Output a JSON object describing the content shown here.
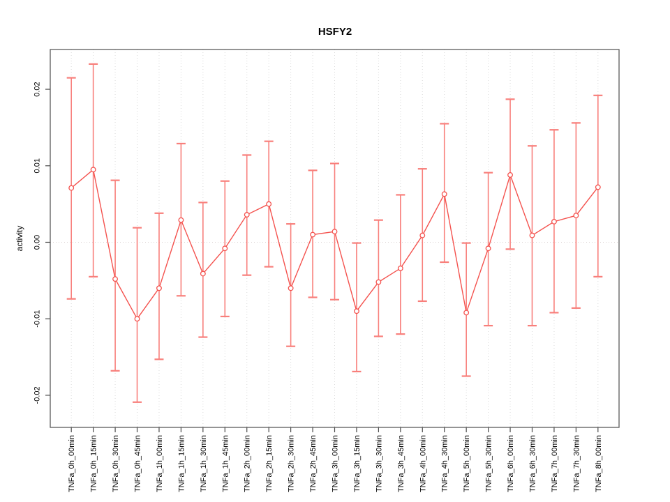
{
  "header": {
    "title": "HSFY2"
  },
  "chart_data": {
    "type": "line",
    "title": "HSFY2",
    "xlabel": "",
    "ylabel": "activity",
    "ylim": [
      -0.0242,
      0.0252
    ],
    "yticks": [
      -0.02,
      -0.01,
      0.0,
      0.01,
      0.02
    ],
    "ytick_labels": [
      "-0.02",
      "-0.01",
      "0.00",
      "0.01",
      "0.02"
    ],
    "grid": {
      "vertical_per_category": true,
      "zero_line": true,
      "style": "dotted"
    },
    "legend": null,
    "categories": [
      "TNFa_0h_00min",
      "TNFa_0h_15min",
      "TNFa_0h_30min",
      "TNFa_0h_45min",
      "TNFa_1h_00min",
      "TNFa_1h_15min",
      "TNFa_1h_30min",
      "TNFa_1h_45min",
      "TNFa_2h_00min",
      "TNFa_2h_15min",
      "TNFa_2h_30min",
      "TNFa_2h_45min",
      "TNFa_3h_00min",
      "TNFa_3h_15min",
      "TNFa_3h_30min",
      "TNFa_3h_45min",
      "TNFa_4h_00min",
      "TNFa_4h_30min",
      "TNFa_5h_00min",
      "TNFa_5h_30min",
      "TNFa_6h_00min",
      "TNFa_6h_30min",
      "TNFa_7h_00min",
      "TNFa_7h_30min",
      "TNFa_8h_00min"
    ],
    "series": [
      {
        "name": "activity",
        "marker": "open-circle",
        "values": [
          0.0071,
          0.0095,
          -0.0048,
          -0.01,
          -0.006,
          0.0029,
          -0.0041,
          -0.0008,
          0.0036,
          0.005,
          -0.006,
          0.001,
          0.0014,
          -0.009,
          -0.0052,
          -0.0034,
          0.0009,
          0.0063,
          -0.0092,
          -0.0008,
          0.0088,
          0.0009,
          0.0027,
          0.0035,
          0.0072
        ],
        "err_high": [
          0.0215,
          0.0233,
          0.0081,
          0.0019,
          0.0038,
          0.0129,
          0.0052,
          0.008,
          0.0114,
          0.0132,
          0.0024,
          0.0094,
          0.0103,
          -0.0001,
          0.0029,
          0.0062,
          0.0096,
          0.0155,
          -0.0001,
          0.0091,
          0.0187,
          0.0126,
          0.0147,
          0.0156,
          0.0192
        ],
        "err_low": [
          -0.0074,
          -0.0045,
          -0.0168,
          -0.0209,
          -0.0153,
          -0.007,
          -0.0124,
          -0.0097,
          -0.0043,
          -0.0032,
          -0.0136,
          -0.0072,
          -0.0075,
          -0.0169,
          -0.0123,
          -0.012,
          -0.0077,
          -0.0026,
          -0.0175,
          -0.0109,
          -0.0009,
          -0.0109,
          -0.0092,
          -0.0086,
          -0.0045
        ]
      }
    ],
    "colors": {
      "line": "#f4524e",
      "marker_stroke": "#f4524e",
      "marker_fill": "#ffffff",
      "error_bar": "#f87f7b",
      "grid": "#d9d9d9",
      "zero_line": "#dcd3d3",
      "frame": "#5a5a5a",
      "tick": "#4a4a4a",
      "text": "#000000"
    }
  }
}
